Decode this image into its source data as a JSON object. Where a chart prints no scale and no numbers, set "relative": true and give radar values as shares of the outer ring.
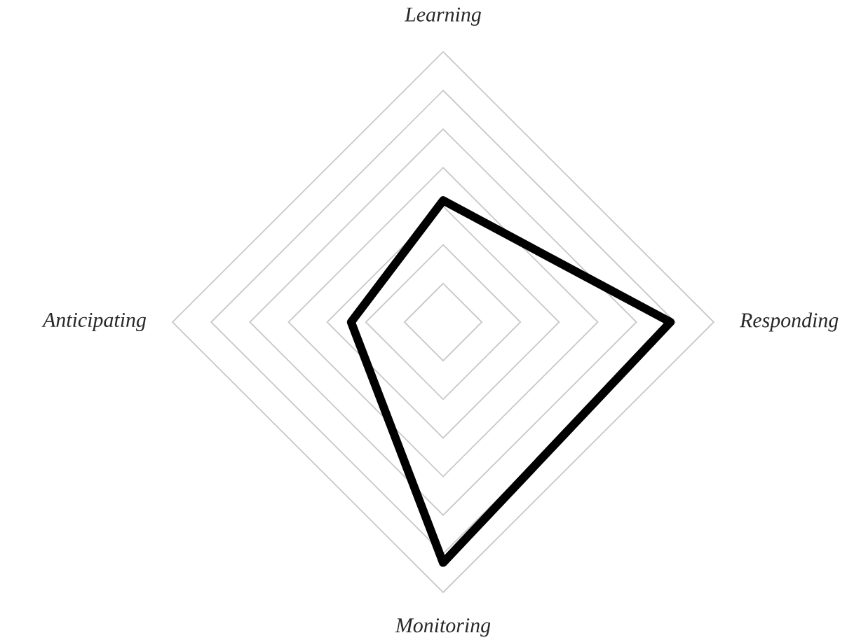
{
  "chart_data": {
    "type": "radar",
    "relative": true,
    "grid": true,
    "categories": [
      "Learning",
      "Responding",
      "Monitoring",
      "Anticipating"
    ],
    "series": [
      {
        "color": "#000000",
        "values": [
          0.45,
          0.84,
          0.89,
          0.34
        ]
      }
    ]
  }
}
